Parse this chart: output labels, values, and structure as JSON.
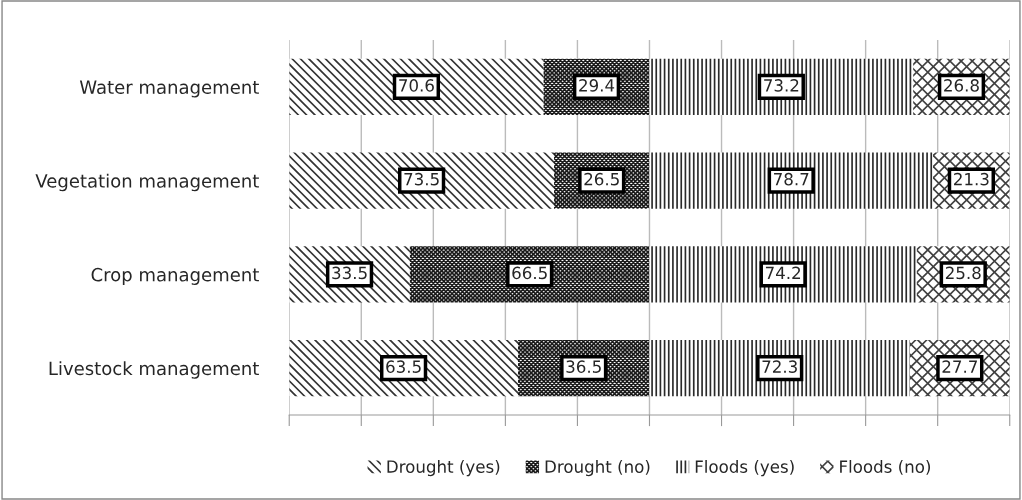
{
  "chart_data": {
    "type": "bar",
    "orientation": "horizontal",
    "stacked": true,
    "categories": [
      "Water management",
      "Vegetation management",
      "Crop management",
      "Livestock management"
    ],
    "series": [
      {
        "name": "Drought (yes)",
        "color": "#333333",
        "values": [
          70.6,
          73.5,
          33.5,
          63.5
        ]
      },
      {
        "name": "Drought (no)",
        "color": "#1a1a1a",
        "values": [
          29.4,
          26.5,
          66.5,
          36.5
        ]
      },
      {
        "name": "Floods (yes)",
        "color": "#2a2a2a",
        "values": [
          73.2,
          78.7,
          74.2,
          72.3
        ]
      },
      {
        "name": "Floods (no)",
        "color": "#404040",
        "values": [
          26.8,
          21.3,
          25.8,
          27.7
        ]
      }
    ],
    "xlim": [
      0,
      200
    ],
    "xticks": [
      {
        "value": 0,
        "label": null
      },
      {
        "value": 20,
        "label": null
      },
      {
        "value": 40,
        "label": null
      },
      {
        "value": 60,
        "label": null
      },
      {
        "value": 80,
        "label": null
      },
      {
        "value": 100,
        "label": null
      },
      {
        "value": 120,
        "label": null
      },
      {
        "value": 140,
        "label": null
      },
      {
        "value": 160,
        "label": null
      },
      {
        "value": 180,
        "label": null
      },
      {
        "value": 200,
        "label": null
      }
    ],
    "tick_labels": "y",
    "grid": "x",
    "legend": "bottom",
    "data_labels": true
  }
}
